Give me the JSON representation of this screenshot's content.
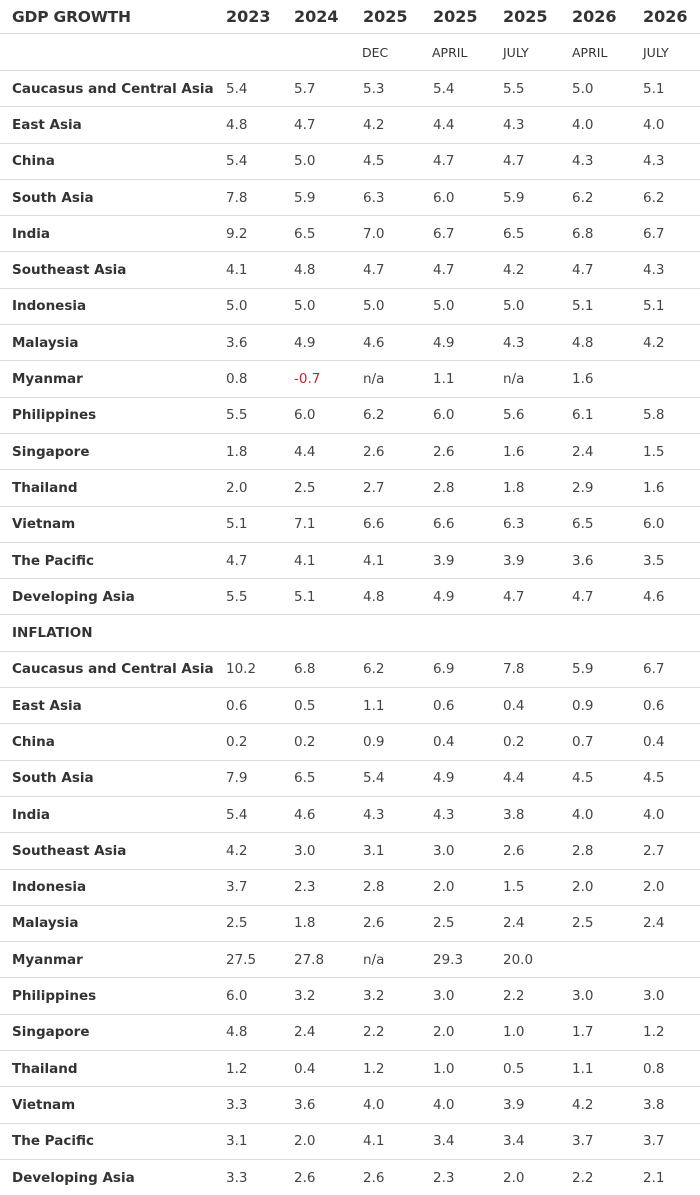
{
  "header": {
    "title": "GDP GROWTH",
    "years": [
      "2023",
      "2024",
      "2025",
      "2025",
      "2025",
      "2026",
      "2026"
    ],
    "sub": [
      "",
      "",
      "DEC",
      "APRIL",
      "JULY",
      "APRIL",
      "JULY"
    ]
  },
  "gdp_rows": [
    {
      "label": "Caucasus and Central Asia",
      "values": [
        "5.4",
        "5.7",
        "5.3",
        "5.4",
        "5.5",
        "5.0",
        "5.1"
      ]
    },
    {
      "label": "East Asia",
      "values": [
        "4.8",
        "4.7",
        "4.2",
        "4.4",
        "4.3",
        "4.0",
        "4.0"
      ]
    },
    {
      "label": "China",
      "values": [
        "5.4",
        "5.0",
        "4.5",
        "4.7",
        "4.7",
        "4.3",
        "4.3"
      ]
    },
    {
      "label": "South Asia",
      "values": [
        "7.8",
        "5.9",
        "6.3",
        "6.0",
        "5.9",
        "6.2",
        "6.2"
      ]
    },
    {
      "label": "India",
      "values": [
        "9.2",
        "6.5",
        "7.0",
        "6.7",
        "6.5",
        "6.8",
        "6.7"
      ]
    },
    {
      "label": "Southeast Asia",
      "values": [
        "4.1",
        "4.8",
        "4.7",
        "4.7",
        "4.2",
        "4.7",
        "4.3"
      ]
    },
    {
      "label": "Indonesia",
      "values": [
        "5.0",
        "5.0",
        "5.0",
        "5.0",
        "5.0",
        "5.1",
        "5.1"
      ]
    },
    {
      "label": "Malaysia",
      "values": [
        "3.6",
        "4.9",
        "4.6",
        "4.9",
        "4.3",
        "4.8",
        "4.2"
      ]
    },
    {
      "label": "Myanmar",
      "values": [
        "0.8",
        "-0.7",
        "n/a",
        "1.1",
        "n/a",
        "1.6",
        ""
      ]
    },
    {
      "label": "Philippines",
      "values": [
        "5.5",
        "6.0",
        "6.2",
        "6.0",
        "5.6",
        "6.1",
        "5.8"
      ]
    },
    {
      "label": "Singapore",
      "values": [
        "1.8",
        "4.4",
        "2.6",
        "2.6",
        "1.6",
        "2.4",
        "1.5"
      ]
    },
    {
      "label": "Thailand",
      "values": [
        "2.0",
        "2.5",
        "2.7",
        "2.8",
        "1.8",
        "2.9",
        "1.6"
      ]
    },
    {
      "label": "Vietnam",
      "values": [
        "5.1",
        "7.1",
        "6.6",
        "6.6",
        "6.3",
        "6.5",
        "6.0"
      ]
    },
    {
      "label": "The Pacific",
      "values": [
        "4.7",
        "4.1",
        "4.1",
        "3.9",
        "3.9",
        "3.6",
        "3.5"
      ]
    },
    {
      "label": "Developing Asia",
      "values": [
        "5.5",
        "5.1",
        "4.8",
        "4.9",
        "4.7",
        "4.7",
        "4.6"
      ]
    }
  ],
  "inflation_title": "INFLATION",
  "inflation_rows": [
    {
      "label": "Caucasus and Central Asia",
      "values": [
        "10.2",
        "6.8",
        "6.2",
        "6.9",
        "7.8",
        "5.9",
        "6.7"
      ]
    },
    {
      "label": "East Asia",
      "values": [
        "0.6",
        "0.5",
        "1.1",
        "0.6",
        "0.4",
        "0.9",
        "0.6"
      ]
    },
    {
      "label": "China",
      "values": [
        "0.2",
        "0.2",
        "0.9",
        "0.4",
        "0.2",
        "0.7",
        "0.4"
      ]
    },
    {
      "label": "South Asia",
      "values": [
        "7.9",
        "6.5",
        "5.4",
        "4.9",
        "4.4",
        "4.5",
        "4.5"
      ]
    },
    {
      "label": "India",
      "values": [
        "5.4",
        "4.6",
        "4.3",
        "4.3",
        "3.8",
        "4.0",
        "4.0"
      ]
    },
    {
      "label": "Southeast Asia",
      "values": [
        "4.2",
        "3.0",
        "3.1",
        "3.0",
        "2.6",
        "2.8",
        "2.7"
      ]
    },
    {
      "label": "Indonesia",
      "values": [
        "3.7",
        "2.3",
        "2.8",
        "2.0",
        "1.5",
        "2.0",
        "2.0"
      ]
    },
    {
      "label": "Malaysia",
      "values": [
        "2.5",
        "1.8",
        "2.6",
        "2.5",
        "2.4",
        "2.5",
        "2.4"
      ]
    },
    {
      "label": "Myanmar",
      "values": [
        "27.5",
        "27.8",
        "n/a",
        "29.3",
        "20.0",
        "",
        ""
      ]
    },
    {
      "label": "Philippines",
      "values": [
        "6.0",
        "3.2",
        "3.2",
        "3.0",
        "2.2",
        "3.0",
        "3.0"
      ]
    },
    {
      "label": "Singapore",
      "values": [
        "4.8",
        "2.4",
        "2.2",
        "2.0",
        "1.0",
        "1.7",
        "1.2"
      ]
    },
    {
      "label": "Thailand",
      "values": [
        "1.2",
        "0.4",
        "1.2",
        "1.0",
        "0.5",
        "1.1",
        "0.8"
      ]
    },
    {
      "label": "Vietnam",
      "values": [
        "3.3",
        "3.6",
        "4.0",
        "4.0",
        "3.9",
        "4.2",
        "3.8"
      ]
    },
    {
      "label": "The Pacific",
      "values": [
        "3.1",
        "2.0",
        "4.1",
        "3.4",
        "3.4",
        "3.7",
        "3.7"
      ]
    },
    {
      "label": "Developing Asia",
      "values": [
        "3.3",
        "2.6",
        "2.6",
        "2.3",
        "2.0",
        "2.2",
        "2.1"
      ]
    }
  ]
}
